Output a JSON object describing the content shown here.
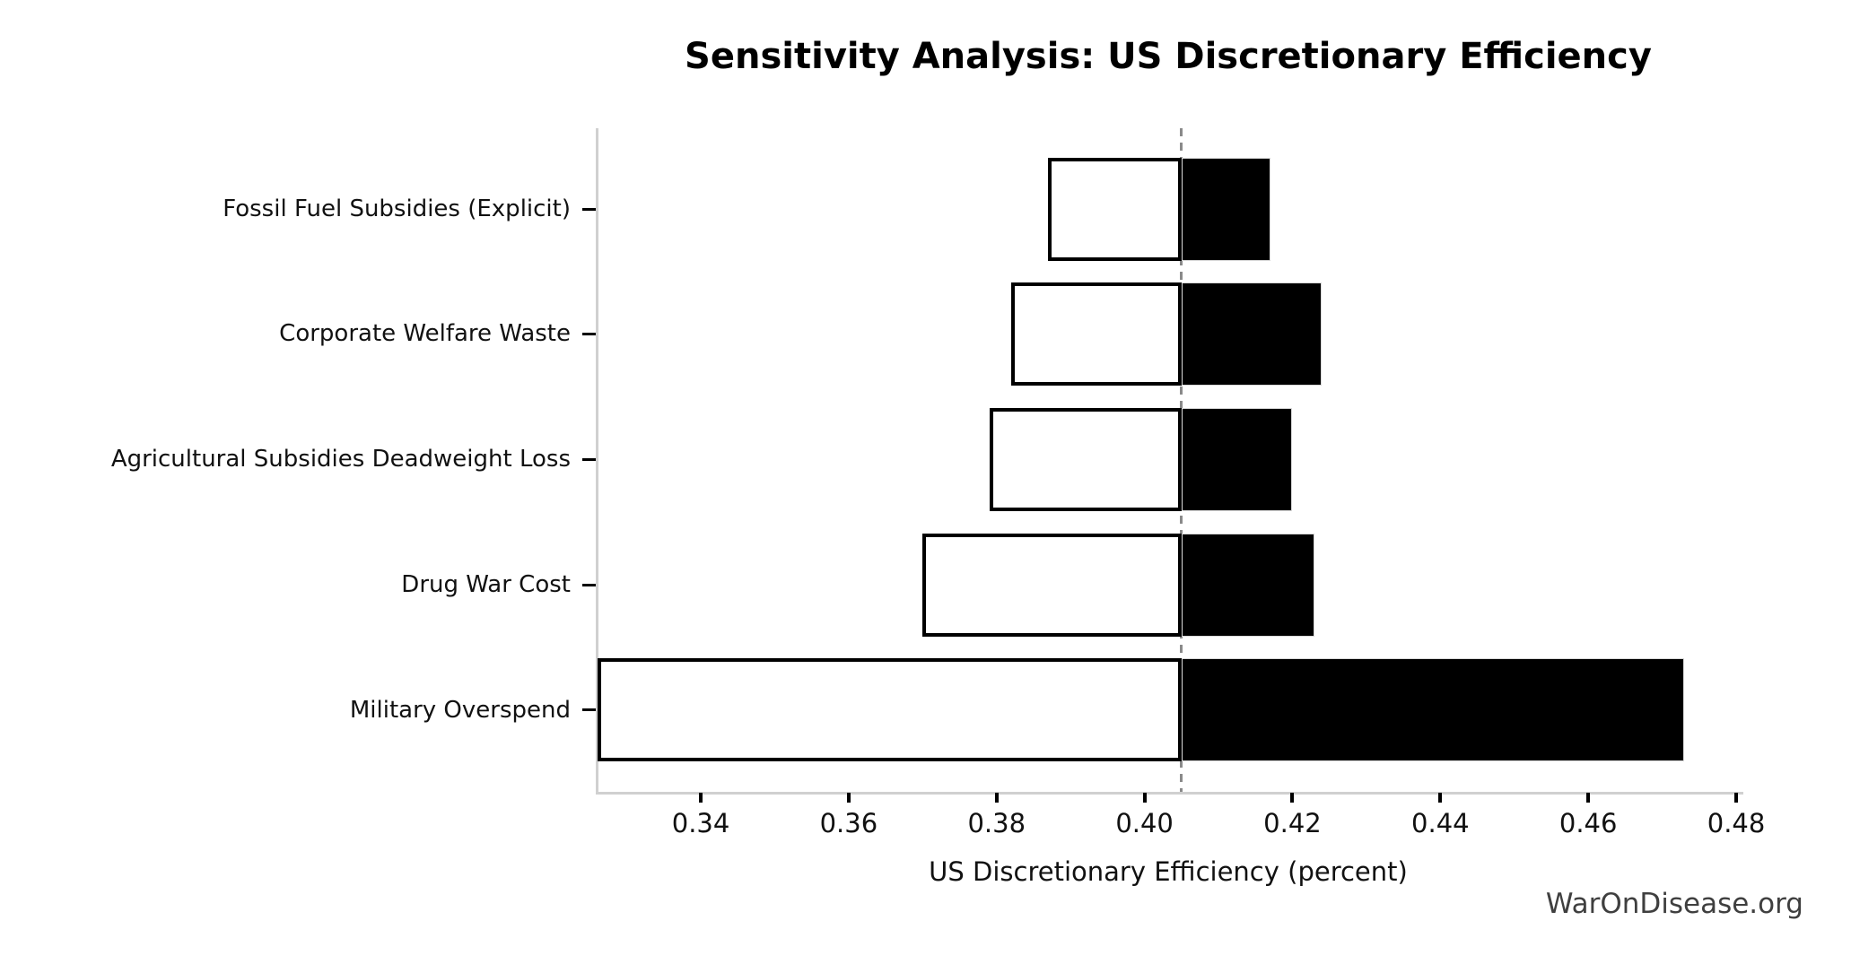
{
  "watermark": "WarOnDisease.org",
  "chart_data": {
    "type": "bar",
    "orientation": "horizontal",
    "variant": "tornado-sensitivity",
    "title": "Sensitivity Analysis: US Discretionary Efficiency",
    "xlabel": "US Discretionary Efficiency (percent)",
    "ylabel": "",
    "categories": [
      "Fossil Fuel Subsidies (Explicit)",
      "Corporate Welfare Waste",
      "Agricultural Subsidies Deadweight Loss",
      "Drug War Cost",
      "Military Overspend"
    ],
    "baseline": 0.405,
    "series": [
      {
        "name": "low_case",
        "values": [
          0.387,
          0.382,
          0.379,
          0.37,
          0.326
        ]
      },
      {
        "name": "high_case",
        "values": [
          0.417,
          0.424,
          0.42,
          0.423,
          0.473
        ]
      }
    ],
    "xticks": [
      0.34,
      0.36,
      0.38,
      0.4,
      0.42,
      0.44,
      0.46,
      0.48
    ],
    "xtick_labels": [
      "0.34",
      "0.36",
      "0.38",
      "0.40",
      "0.42",
      "0.44",
      "0.46",
      "0.48"
    ],
    "xlim": [
      0.3258,
      0.4806
    ],
    "grid": false,
    "legend": null,
    "colors": {
      "low_fill": "#ffffff",
      "high_fill": "#000000",
      "bar_edge": "#000000",
      "baseline_line": "#8a8a8a",
      "spine": "#d0d0d0",
      "watermark_text": "#3f3f3f"
    }
  }
}
